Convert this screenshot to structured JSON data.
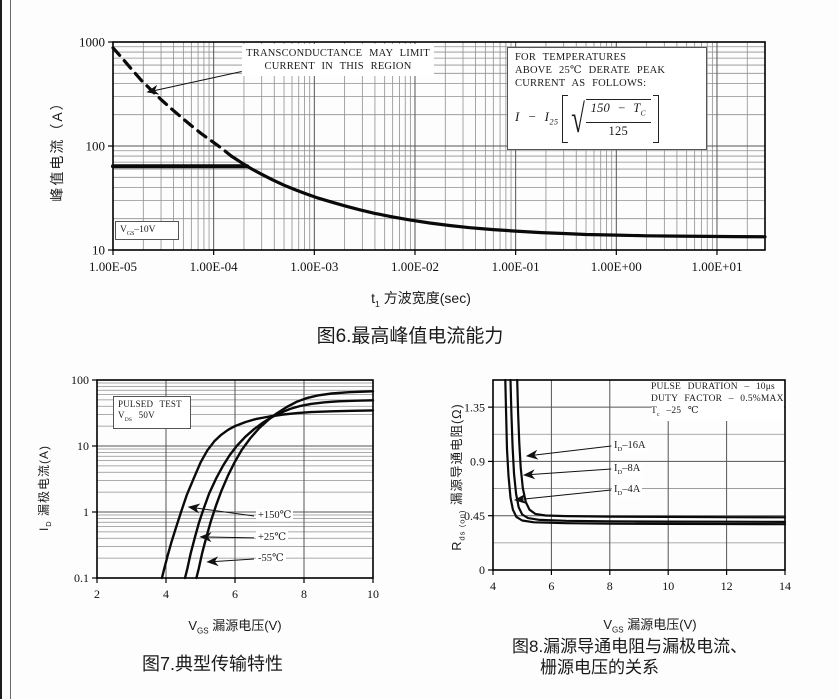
{
  "fig6": {
    "ylabel": "峰值电流（A）",
    "xlabel": "t~1~ 方波宽度(sec)",
    "caption": "图6.最高峰值电流能力",
    "note_l1": "TRANSCONDUCTANCE MAY LIMIT",
    "note_l2": "CURRENT IN THIS REGION",
    "derate_l1": "FOR TEMPERATURES",
    "derate_l2": "ABOVE 25℃ DERATE PEAK",
    "derate_l3": "CURRENT AS FOLLOWS:",
    "formula_prefix": "I − I~25~",
    "formula_sqrt": "√",
    "formula_num": "150 − T~C~",
    "formula_den": "125",
    "corner_label": "V~GS~–10V"
  },
  "fig7": {
    "ylabel": "I~D~ 漏极电流(A)",
    "xlabel": "V~GS~ 漏源电压(V)",
    "caption": "图7.典型传输特性",
    "note_l1": "PULSED TEST",
    "note_l2": "V~DS~ 50V",
    "curve_labels": [
      "+150℃",
      "+25℃",
      "-55℃"
    ]
  },
  "fig8": {
    "ylabel": "R~ds (on)~ 漏源导通电阻(Ω)",
    "xlabel": "V~GS~ 漏源电压(V)",
    "caption_l1": "图8.漏源导通电阻与漏极电流、",
    "caption_l2": "栅源电压的关系",
    "note_l1": "PULSE DURATION – 10μs",
    "note_l2": "DUTY FACTOR – 0.5%MAX",
    "note_l3": "T~c~ –25 ℃",
    "curve_labels": [
      "I~D~–16A",
      "I~D~–8A",
      "I~D~–4A"
    ]
  },
  "chart_data": [
    {
      "type": "line",
      "title": "图6.最高峰值电流能力",
      "xlabel": "t1 方波宽度(sec)",
      "ylabel": "峰值电流（A）",
      "legend": "none",
      "grid": "log-log full grid",
      "tick_size": 13,
      "x": {
        "scale": "log",
        "min": 1e-05,
        "max": 30,
        "ticks": [
          1e-05,
          0.0001,
          0.001,
          0.01,
          0.1,
          1,
          10
        ],
        "tick_labels": [
          "1.00E-05",
          "1.00E-04",
          "1.00E-03",
          "1.00E-02",
          "1.00E-01",
          "1.00E+00",
          "1.00E+01"
        ]
      },
      "y": {
        "scale": "log",
        "min": 10,
        "max": 1000,
        "ticks": [
          10,
          100,
          1000
        ],
        "tick_labels": [
          "10",
          "100",
          "1000"
        ]
      },
      "series": [
        {
          "name": "transconductance-limited-region",
          "style": "dashed",
          "width": 3.2,
          "points": [
            [
              1e-05,
              880
            ],
            [
              1.2e-05,
              720
            ],
            [
              1.5e-05,
              560
            ],
            [
              1.9e-05,
              430
            ],
            [
              2.4e-05,
              345
            ],
            [
              3e-05,
              280
            ],
            [
              3.8e-05,
              228
            ],
            [
              4.8e-05,
              188
            ],
            [
              6e-05,
              157
            ],
            [
              7.5e-05,
              132
            ],
            [
              9.5e-05,
              112
            ],
            [
              0.00012,
              95
            ],
            [
              0.00015,
              80
            ]
          ]
        },
        {
          "name": "max-peak-current",
          "style": "solid",
          "width": 3.2,
          "points": [
            [
              0.00015,
              80
            ],
            [
              0.00019,
              69
            ],
            [
              0.00024,
              60
            ],
            [
              0.0003,
              53.5
            ],
            [
              0.00038,
              47.5
            ],
            [
              0.0005,
              42
            ],
            [
              0.00065,
              37.8
            ],
            [
              0.00085,
              34.3
            ],
            [
              0.0011,
              31.5
            ],
            [
              0.0015,
              28.8
            ],
            [
              0.002,
              26.6
            ],
            [
              0.0028,
              24.4
            ],
            [
              0.004,
              22.5
            ],
            [
              0.006,
              20.8
            ],
            [
              0.009,
              19.4
            ],
            [
              0.014,
              18.2
            ],
            [
              0.022,
              17.2
            ],
            [
              0.035,
              16.4
            ],
            [
              0.06,
              15.7
            ],
            [
              0.1,
              15.2
            ],
            [
              0.18,
              14.7
            ],
            [
              0.3,
              14.4
            ],
            [
              0.5,
              14.1
            ],
            [
              1,
              13.9
            ],
            [
              2,
              13.7
            ],
            [
              4,
              13.6
            ],
            [
              8,
              13.5
            ],
            [
              15,
              13.45
            ],
            [
              30,
              13.4
            ]
          ]
        },
        {
          "name": "package-current-limit",
          "style": "solid",
          "width": 4,
          "points": [
            [
              1e-05,
              64
            ],
            [
              0.000215,
              64
            ]
          ]
        }
      ],
      "arrows": [
        {
          "label": "TRANSCONDUCTANCE MAY LIMIT CURRENT IN THIS REGION",
          "from": [
            0.00019,
            520
          ],
          "to": [
            2.2e-05,
            330
          ]
        }
      ]
    },
    {
      "type": "line",
      "title": "图7.典型传输特性",
      "xlabel": "VGS 漏源电压(V)",
      "ylabel": "ID 漏极电流(A)",
      "legend": "none",
      "conditions": "PULSED TEST, VDS 50V",
      "tick_size": 12,
      "x": {
        "scale": "linear",
        "min": 2,
        "max": 10,
        "grid_step": 2,
        "ticks": [
          2,
          4,
          6,
          8,
          10
        ],
        "tick_labels": [
          "2",
          "4",
          "6",
          "8",
          "10"
        ]
      },
      "y": {
        "scale": "log",
        "min": 0.1,
        "max": 100,
        "ticks": [
          0.1,
          1,
          10,
          100
        ],
        "tick_labels": [
          "0.1",
          "1",
          "10",
          "100"
        ]
      },
      "series": [
        {
          "name": "+150C",
          "style": "solid",
          "width": 2.4,
          "points": [
            [
              3.88,
              0.1
            ],
            [
              3.95,
              0.14
            ],
            [
              4.05,
              0.22
            ],
            [
              4.15,
              0.34
            ],
            [
              4.3,
              0.6
            ],
            [
              4.45,
              1.05
            ],
            [
              4.6,
              1.8
            ],
            [
              4.8,
              3.2
            ],
            [
              5.0,
              5.6
            ],
            [
              5.2,
              8.6
            ],
            [
              5.4,
              11.8
            ],
            [
              5.6,
              14.8
            ],
            [
              5.8,
              17.6
            ],
            [
              6.0,
              20
            ],
            [
              6.3,
              23
            ],
            [
              6.6,
              25.6
            ],
            [
              7.0,
              28
            ],
            [
              7.4,
              30
            ],
            [
              7.8,
              31.5
            ],
            [
              8.2,
              32.6
            ],
            [
              8.8,
              33.6
            ],
            [
              9.4,
              34.2
            ],
            [
              10,
              34.6
            ]
          ]
        },
        {
          "name": "+25C",
          "style": "solid",
          "width": 2.4,
          "points": [
            [
              4.55,
              0.1
            ],
            [
              4.62,
              0.14
            ],
            [
              4.72,
              0.24
            ],
            [
              4.84,
              0.42
            ],
            [
              4.96,
              0.7
            ],
            [
              5.1,
              1.15
            ],
            [
              5.25,
              1.9
            ],
            [
              5.45,
              3.2
            ],
            [
              5.65,
              5
            ],
            [
              5.85,
              7.3
            ],
            [
              6.05,
              10
            ],
            [
              6.3,
              13.8
            ],
            [
              6.55,
              18
            ],
            [
              6.8,
              22.5
            ],
            [
              7.05,
              27
            ],
            [
              7.3,
              31.5
            ],
            [
              7.6,
              36.5
            ],
            [
              7.9,
              40.5
            ],
            [
              8.2,
              43.5
            ],
            [
              8.6,
              46
            ],
            [
              9.0,
              47.6
            ],
            [
              9.5,
              48.6
            ],
            [
              10,
              49.3
            ]
          ]
        },
        {
          "name": "-55C",
          "style": "solid",
          "width": 2.4,
          "points": [
            [
              4.88,
              0.1
            ],
            [
              4.95,
              0.14
            ],
            [
              5.05,
              0.24
            ],
            [
              5.17,
              0.42
            ],
            [
              5.3,
              0.72
            ],
            [
              5.45,
              1.25
            ],
            [
              5.6,
              2.05
            ],
            [
              5.8,
              3.6
            ],
            [
              6.0,
              5.8
            ],
            [
              6.2,
              8.8
            ],
            [
              6.45,
              13.2
            ],
            [
              6.7,
              18.6
            ],
            [
              6.95,
              24.5
            ],
            [
              7.2,
              31
            ],
            [
              7.5,
              39
            ],
            [
              7.8,
              47
            ],
            [
              8.1,
              53.5
            ],
            [
              8.4,
              58.5
            ],
            [
              8.8,
              62.5
            ],
            [
              9.3,
              65.3
            ],
            [
              10,
              67.5
            ]
          ]
        }
      ],
      "arrows": [
        {
          "label": "+150℃",
          "from": [
            6.55,
            0.87
          ],
          "to": [
            4.66,
            1.19
          ]
        },
        {
          "label": "+25℃",
          "from": [
            6.55,
            0.405
          ],
          "to": [
            5.0,
            0.42
          ]
        },
        {
          "label": "-55℃",
          "from": [
            6.55,
            0.194
          ],
          "to": [
            5.2,
            0.175
          ]
        }
      ]
    },
    {
      "type": "line",
      "title": "图8.漏源导通电阻与漏极电流、栅源电压的关系",
      "xlabel": "VGS 漏源电压(V)",
      "ylabel": "Rds(on) 漏源导通电阻(Ω)",
      "legend": "none",
      "conditions": "PULSE DURATION – 10μs, DUTY FACTOR – 0.5%MAX, Tc –25℃",
      "tick_size": 12,
      "x": {
        "scale": "linear",
        "min": 4,
        "max": 14,
        "grid_step": 2,
        "ticks": [
          4,
          6,
          8,
          10,
          12,
          14
        ],
        "tick_labels": [
          "4",
          "6",
          "8",
          "10",
          "12",
          "14"
        ]
      },
      "y": {
        "scale": "linear",
        "min": 0,
        "max": 1.575,
        "grid_step": 0.225,
        "ticks": [
          0,
          0.45,
          0.9,
          1.35
        ],
        "tick_labels": [
          "0",
          "0.45",
          "0.9",
          "1.35"
        ]
      },
      "series": [
        {
          "name": "ID-16A",
          "style": "solid",
          "width": 2.2,
          "points": [
            [
              4.83,
              1.575
            ],
            [
              4.86,
              1.3
            ],
            [
              4.9,
              1.05
            ],
            [
              4.95,
              0.85
            ],
            [
              5.02,
              0.68
            ],
            [
              5.12,
              0.565
            ],
            [
              5.25,
              0.5
            ],
            [
              5.45,
              0.465
            ],
            [
              5.8,
              0.452
            ],
            [
              6.5,
              0.447
            ],
            [
              8,
              0.443
            ],
            [
              10,
              0.44
            ],
            [
              12,
              0.438
            ],
            [
              14,
              0.437
            ]
          ]
        },
        {
          "name": "ID-8A",
          "style": "solid",
          "width": 2.2,
          "points": [
            [
              4.6,
              1.575
            ],
            [
              4.63,
              1.3
            ],
            [
              4.67,
              1.02
            ],
            [
              4.72,
              0.8
            ],
            [
              4.79,
              0.63
            ],
            [
              4.88,
              0.52
            ],
            [
              5.0,
              0.46
            ],
            [
              5.2,
              0.43
            ],
            [
              5.6,
              0.415
            ],
            [
              6.5,
              0.408
            ],
            [
              8,
              0.404
            ],
            [
              10,
              0.401
            ],
            [
              12,
              0.4
            ],
            [
              14,
              0.399
            ]
          ]
        },
        {
          "name": "ID-4A",
          "style": "solid",
          "width": 2.2,
          "points": [
            [
              4.42,
              1.575
            ],
            [
              4.45,
              1.3
            ],
            [
              4.48,
              1.0
            ],
            [
              4.53,
              0.78
            ],
            [
              4.6,
              0.6
            ],
            [
              4.68,
              0.5
            ],
            [
              4.8,
              0.44
            ],
            [
              5.0,
              0.41
            ],
            [
              5.4,
              0.395
            ],
            [
              6.5,
              0.388
            ],
            [
              8,
              0.384
            ],
            [
              10,
              0.382
            ],
            [
              12,
              0.381
            ],
            [
              14,
              0.38
            ]
          ]
        }
      ],
      "arrows": [
        {
          "label": "ID–16A",
          "from": [
            8.05,
            1.028
          ],
          "to": [
            5.16,
            0.945
          ]
        },
        {
          "label": "ID–8A",
          "from": [
            8.05,
            0.837
          ],
          "to": [
            5.06,
            0.787
          ]
        },
        {
          "label": "ID–4A",
          "from": [
            8.05,
            0.663
          ],
          "to": [
            4.75,
            0.58
          ]
        }
      ]
    }
  ]
}
